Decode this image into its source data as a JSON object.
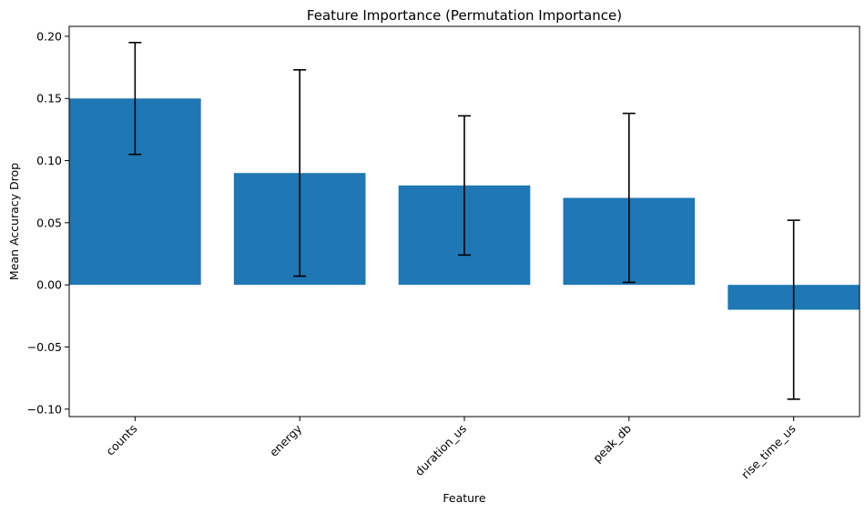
{
  "chart_data": {
    "type": "bar",
    "title": "Feature Importance (Permutation Importance)",
    "xlabel": "Feature",
    "ylabel": "Mean Accuracy Drop",
    "categories": [
      "counts",
      "energy",
      "duration_us",
      "peak_db",
      "rise_time_us"
    ],
    "values": [
      0.15,
      0.09,
      0.08,
      0.07,
      -0.02
    ],
    "errors": [
      0.045,
      0.083,
      0.056,
      0.068,
      0.072
    ],
    "ylim": [
      -0.106,
      0.208
    ],
    "yticks": [
      -0.1,
      -0.05,
      0.0,
      0.05,
      0.1,
      0.15,
      0.2
    ],
    "ytick_labels": [
      "−0.10",
      "−0.05",
      "0.00",
      "0.05",
      "0.10",
      "0.15",
      "0.20"
    ],
    "grid": false,
    "colors": {
      "bar": "#1f77b4",
      "errorbar": "#000000"
    }
  }
}
